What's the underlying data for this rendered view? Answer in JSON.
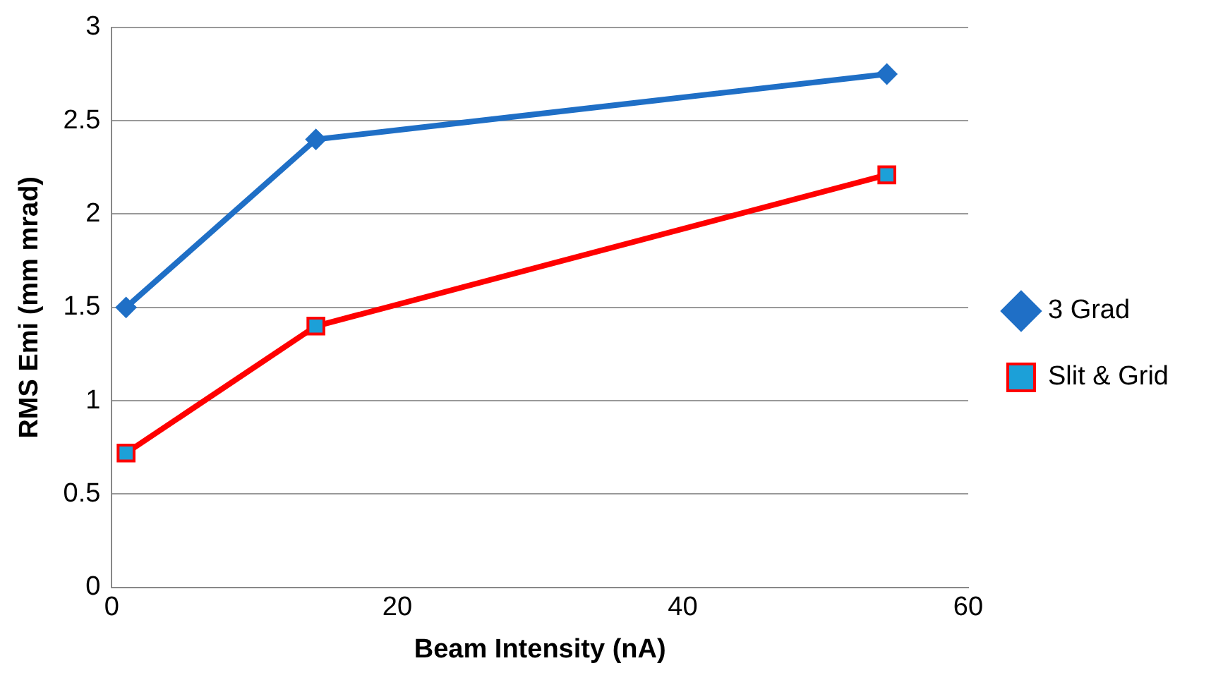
{
  "chart_data": {
    "type": "line",
    "xlabel": "Beam Intensity (nA)",
    "ylabel": "RMS Emi (mm mrad)",
    "x": [
      1,
      14.3,
      54.3
    ],
    "series": [
      {
        "name": "3 Grad",
        "color": "#1f6fc6",
        "values": [
          1.5,
          2.4,
          2.75
        ],
        "marker": "diamond"
      },
      {
        "name": "Slit & Grid",
        "color": "#ff0000",
        "values": [
          0.72,
          1.4,
          2.21
        ],
        "marker": "square"
      }
    ],
    "xlim": [
      0,
      60
    ],
    "xticks": [
      0,
      20,
      40,
      60
    ],
    "ylim": [
      0,
      3
    ],
    "yticks": [
      0,
      0.5,
      1,
      1.5,
      2,
      2.5,
      3
    ],
    "grid": "y",
    "legend": "right",
    "line_style": "solid"
  }
}
